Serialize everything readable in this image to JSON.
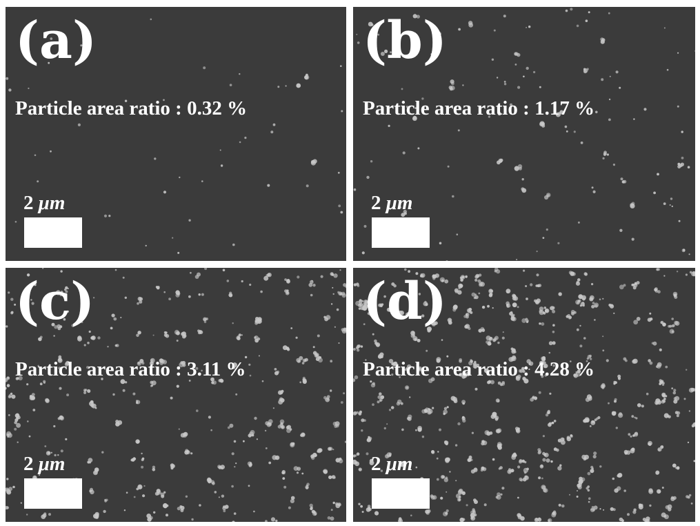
{
  "panels": [
    {
      "id": "a",
      "label": "(a)",
      "ratio_text": "Particle area ratio : 0.32 %",
      "ratio_value": 0.32,
      "scale_number": "2",
      "scale_unit": "μm"
    },
    {
      "id": "b",
      "label": "(b)",
      "ratio_text": "Particle area ratio : 1.17 %",
      "ratio_value": 1.17,
      "scale_number": "2",
      "scale_unit": "μm"
    },
    {
      "id": "c",
      "label": "(c)",
      "ratio_text": "Particle area ratio : 3.11 %",
      "ratio_value": 3.11,
      "scale_number": "2",
      "scale_unit": "μm"
    },
    {
      "id": "d",
      "label": "(d)",
      "ratio_text": "Particle area ratio : 4.28 %",
      "ratio_value": 4.28,
      "scale_number": "2",
      "scale_unit": "μm"
    }
  ],
  "colors": {
    "background": "#3b3b3b",
    "particle": "#c8c8c8",
    "text": "#ffffff"
  }
}
